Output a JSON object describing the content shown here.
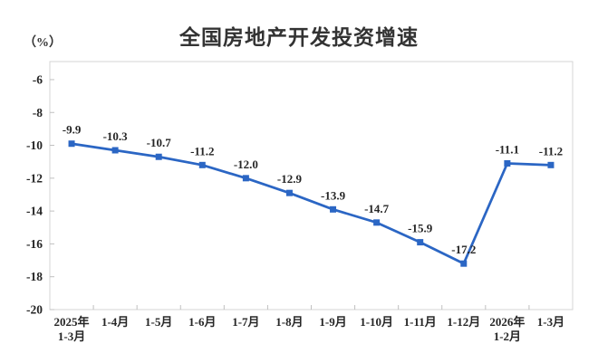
{
  "page": {
    "background": "#ffffff"
  },
  "chart_data": {
    "type": "line",
    "title": "全国房地产开发投资增速",
    "unit_label": "（%）",
    "categories": [
      "2025年\n1-3月",
      "1-4月",
      "1-5月",
      "1-6月",
      "1-7月",
      "1-8月",
      "1-9月",
      "1-10月",
      "1-11月",
      "1-12月",
      "2026年\n1-2月",
      "1-3月"
    ],
    "values": [
      -9.9,
      -10.3,
      -10.7,
      -11.2,
      -12.0,
      -12.9,
      -13.9,
      -14.7,
      -15.9,
      -17.2,
      -11.1,
      -11.2
    ],
    "data_labels": [
      "-9.9",
      "-10.3",
      "-10.7",
      "-11.2",
      "-12.0",
      "-12.9",
      "-13.9",
      "-14.7",
      "-15.9",
      "-17.2",
      "-11.1",
      "-11.2"
    ],
    "y_ticks": [
      -6,
      -8,
      -10,
      -12,
      -14,
      -16,
      -18,
      -20
    ],
    "y_tick_labels": [
      "-6",
      "-8",
      "-10",
      "-12",
      "-14",
      "-16",
      "-18",
      "-20"
    ],
    "ylim": [
      -20,
      -4.9
    ],
    "xlabel": "",
    "ylabel": "（%）",
    "grid": false,
    "legend": "none",
    "line_color": "#2B66C4",
    "marker": "square",
    "axis_color": "#c0c0c0",
    "frame_color": "#d4d4d4",
    "text_color": "#262626"
  }
}
